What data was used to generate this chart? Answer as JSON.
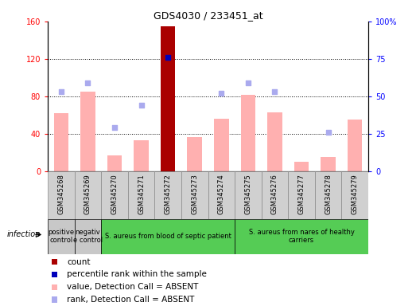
{
  "title": "GDS4030 / 233451_at",
  "samples": [
    "GSM345268",
    "GSM345269",
    "GSM345270",
    "GSM345271",
    "GSM345272",
    "GSM345273",
    "GSM345274",
    "GSM345275",
    "GSM345276",
    "GSM345277",
    "GSM345278",
    "GSM345279"
  ],
  "absent_value": [
    62,
    85,
    17,
    33,
    0,
    37,
    56,
    82,
    63,
    10,
    15,
    55
  ],
  "count_value": [
    0,
    0,
    0,
    0,
    155,
    0,
    0,
    0,
    0,
    0,
    0,
    0
  ],
  "is_count": [
    false,
    false,
    false,
    false,
    true,
    false,
    false,
    false,
    false,
    false,
    false,
    false
  ],
  "absent_rank": [
    53,
    59,
    29,
    44,
    null,
    null,
    52,
    59,
    53,
    null,
    26,
    null
  ],
  "percentile": [
    null,
    null,
    null,
    null,
    76,
    null,
    null,
    null,
    null,
    null,
    null,
    null
  ],
  "groups": [
    {
      "label": "positive\ncontrol",
      "start": 0,
      "end": 1,
      "color": "#c8c8c8"
    },
    {
      "label": "negativ\ne control",
      "start": 1,
      "end": 2,
      "color": "#c8c8c8"
    },
    {
      "label": "S. aureus from blood of septic patient",
      "start": 2,
      "end": 7,
      "color": "#55cc55"
    },
    {
      "label": "S. aureus from nares of healthy\ncarriers",
      "start": 7,
      "end": 12,
      "color": "#55cc55"
    }
  ],
  "ylim_left": [
    0,
    160
  ],
  "ylim_right": [
    0,
    100
  ],
  "yticks_left": [
    0,
    40,
    80,
    120,
    160
  ],
  "ytick_labels_left": [
    "0",
    "40",
    "80",
    "120",
    "160"
  ],
  "ytick_labels_right": [
    "0",
    "25",
    "50",
    "75",
    "100%"
  ],
  "bar_color_normal": "#ffb0b0",
  "bar_color_highlight": "#aa0000",
  "absent_rank_color": "#aaaaee",
  "percentile_color": "#0000bb",
  "infection_label": "infection"
}
